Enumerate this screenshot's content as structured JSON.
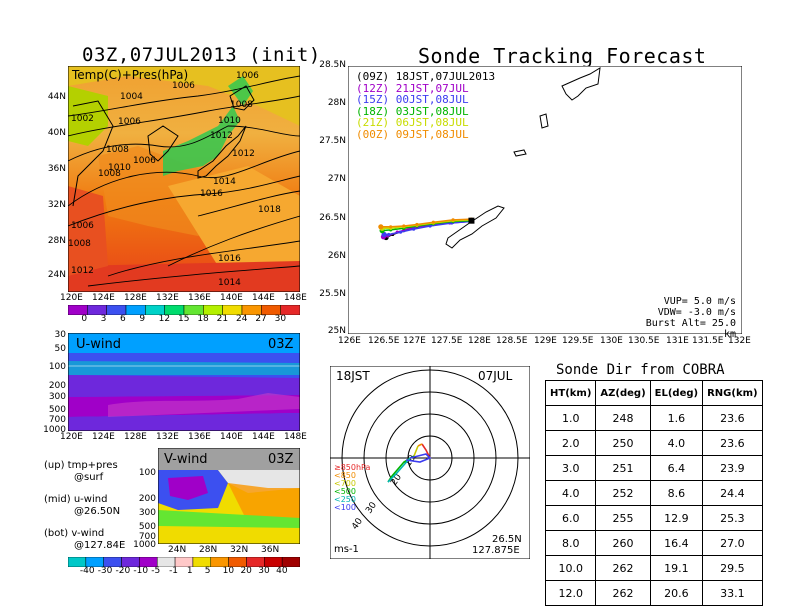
{
  "top_left": {
    "title": "03Z,07JUL2013 (init)",
    "map_label": "Temp(C)+Pres(hPa)",
    "lat_ticks": [
      "44N",
      "40N",
      "36N",
      "32N",
      "28N",
      "24N"
    ],
    "lon_ticks": [
      "120E",
      "124E",
      "128E",
      "132E",
      "136E",
      "140E",
      "144E",
      "148E"
    ],
    "isobar_labels": [
      "1006",
      "1004",
      "1006",
      "1008",
      "1002",
      "1006",
      "1010",
      "1008",
      "1006",
      "1012",
      "1008",
      "1010",
      "1012",
      "1014",
      "1016",
      "1018",
      "1006",
      "1008",
      "1016",
      "1012",
      "1014"
    ],
    "colorbar_labels": [
      "0",
      "3",
      "6",
      "9",
      "12",
      "15",
      "18",
      "21",
      "24",
      "27",
      "30"
    ],
    "colorbar_colors": [
      "#a000c8",
      "#6e28dc",
      "#3c50f0",
      "#00a0ff",
      "#00d2c8",
      "#00dc6e",
      "#64e632",
      "#b4f000",
      "#f0dc00",
      "#fa9600",
      "#f05a00",
      "#e62828"
    ]
  },
  "u_wind": {
    "label": "U-wind",
    "time": "03Z",
    "p_ticks": [
      "30",
      "50",
      "100",
      "200",
      "300",
      "500",
      "700",
      "1000"
    ],
    "lon_ticks": [
      "120E",
      "124E",
      "128E",
      "132E",
      "136E",
      "140E",
      "144E",
      "148E"
    ]
  },
  "v_wind": {
    "label": "V-wind",
    "time": "03Z",
    "p_ticks": [
      "100",
      "200",
      "300",
      "500",
      "700",
      "1000"
    ],
    "lat_ticks": [
      "24N",
      "28N",
      "32N",
      "36N"
    ]
  },
  "legend_text": {
    "up": "(up) tmp+pres",
    "up2": "@surf",
    "mid": "(mid) u-wind",
    "mid2": "@26.50N",
    "bot": "(bot) v-wind",
    "bot2": "@127.84E"
  },
  "wind_colorbar": {
    "labels": [
      "-40",
      "-30",
      "-20",
      "-10",
      "-5",
      "-1",
      "1",
      "5",
      "10",
      "20",
      "30",
      "40"
    ],
    "colors": [
      "#00c8c8",
      "#00a0ff",
      "#3c50f0",
      "#6e28dc",
      "#a000c8",
      "#e6e6e6",
      "#ffc8c8",
      "#f0dc00",
      "#fa9600",
      "#f05a00",
      "#e62828",
      "#c80000",
      "#a00000"
    ]
  },
  "tracking": {
    "title": "Sonde Tracking Forecast",
    "legend": [
      {
        "run": "(09Z)",
        "time": "18JST,07JUL2013",
        "color": "#000000"
      },
      {
        "run": "(12Z)",
        "time": "21JST,07JUL",
        "color": "#a000c8"
      },
      {
        "run": "(15Z)",
        "time": "00JST,08JUL",
        "color": "#3c3cf0"
      },
      {
        "run": "(18Z)",
        "time": "03JST,08JUL",
        "color": "#00b400"
      },
      {
        "run": "(21Z)",
        "time": "06JST,08JUL",
        "color": "#c8dc00"
      },
      {
        "run": "(00Z)",
        "time": "09JST,08JUL",
        "color": "#f08c00"
      }
    ],
    "params": [
      "VUP=  5.0 m/s",
      "VDW= -3.0 m/s",
      "Burst Alt= 25.0 km"
    ]
  },
  "polar": {
    "time_label": "18JST",
    "date_label": "07JUL",
    "unit": "ms-1",
    "loc1": "26.5N",
    "loc2": "127.875E",
    "level_labels": [
      {
        "text": "≥850hPa",
        "color": "#e62828"
      },
      {
        "text": "<850",
        "color": "#f08c00"
      },
      {
        "text": "<700",
        "color": "#c8c800"
      },
      {
        "text": "<500",
        "color": "#00b400"
      },
      {
        "text": "<250",
        "color": "#00b4b4"
      },
      {
        "text": "<100",
        "color": "#3c3cf0"
      }
    ],
    "ring_labels": [
      "10",
      "20",
      "30",
      "40"
    ]
  },
  "chart_data": [
    {
      "type": "line",
      "title": "Sonde Tracking Forecast",
      "xlabel": "",
      "ylabel": "",
      "xlim": [
        126,
        132
      ],
      "ylim": [
        25,
        28.5
      ],
      "x_ticks": [
        "126E",
        "126.5E",
        "127E",
        "127.5E",
        "128E",
        "128.5E",
        "129E",
        "129.5E",
        "130E",
        "130.5E",
        "131E",
        "131.5E",
        "132E"
      ],
      "y_ticks": [
        "25N",
        "25.5N",
        "26N",
        "26.5N",
        "27N",
        "27.5N",
        "28N",
        "28.5N"
      ],
      "series": [
        {
          "name": "(09Z)",
          "color": "#000000",
          "x": [
            127.88,
            127.6,
            127.3,
            127.05,
            126.85,
            126.68,
            126.58
          ],
          "y": [
            26.48,
            26.46,
            26.43,
            26.4,
            26.35,
            26.3,
            26.26
          ]
        },
        {
          "name": "(12Z)",
          "color": "#a000c8",
          "x": [
            127.88,
            127.55,
            127.2,
            126.95,
            126.75,
            126.6,
            126.54
          ],
          "y": [
            26.47,
            26.45,
            26.42,
            26.38,
            26.33,
            26.28,
            26.27
          ]
        },
        {
          "name": "(15Z)",
          "color": "#3c3cf0",
          "x": [
            127.88,
            127.58,
            127.25,
            127.0,
            126.8,
            126.62,
            126.55
          ],
          "y": [
            26.47,
            26.45,
            26.41,
            26.37,
            26.33,
            26.3,
            26.3
          ]
        },
        {
          "name": "(18Z)",
          "color": "#00b400",
          "x": [
            127.88,
            127.6,
            127.3,
            127.05,
            126.85,
            126.65,
            126.52
          ],
          "y": [
            26.48,
            26.47,
            26.44,
            26.41,
            26.38,
            26.36,
            26.35
          ]
        },
        {
          "name": "(21Z)",
          "color": "#c8dc00",
          "x": [
            127.88,
            127.6,
            127.3,
            127.05,
            126.85,
            126.65,
            126.52
          ],
          "y": [
            26.49,
            26.48,
            26.45,
            26.42,
            26.4,
            26.38,
            26.38
          ]
        },
        {
          "name": "(00Z)",
          "color": "#f08c00",
          "x": [
            127.88,
            127.6,
            127.3,
            127.05,
            126.85,
            126.65,
            126.5
          ],
          "y": [
            26.5,
            26.49,
            26.46,
            26.43,
            26.41,
            26.4,
            26.4
          ]
        }
      ]
    },
    {
      "type": "table",
      "title": "Sonde Dir from COBRA",
      "columns": [
        "HT(km)",
        "AZ(deg)",
        "EL(deg)",
        "RNG(km)"
      ],
      "rows": [
        [
          "1.0",
          "248",
          "1.6",
          "23.6"
        ],
        [
          "2.0",
          "250",
          "4.0",
          "23.6"
        ],
        [
          "3.0",
          "251",
          "6.4",
          "23.9"
        ],
        [
          "4.0",
          "252",
          "8.6",
          "24.4"
        ],
        [
          "6.0",
          "255",
          "12.9",
          "25.3"
        ],
        [
          "8.0",
          "260",
          "16.4",
          "27.0"
        ],
        [
          "10.0",
          "262",
          "19.1",
          "29.5"
        ],
        [
          "12.0",
          "262",
          "20.6",
          "33.1"
        ]
      ]
    }
  ]
}
